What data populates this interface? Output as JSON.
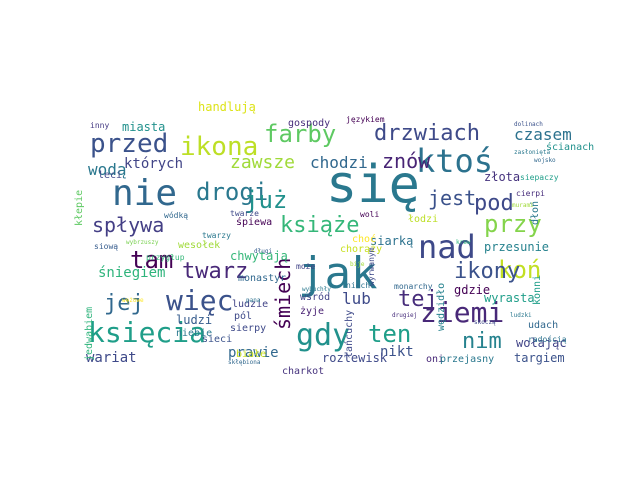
{
  "words": [
    {
      "text": "się",
      "color": "#2a788e"
    },
    {
      "text": "jak",
      "color": "#2a788e"
    },
    {
      "text": "nie",
      "color": "#31688e"
    },
    {
      "text": "ktoś",
      "color": "#2c728e"
    },
    {
      "text": "nad",
      "color": "#3e4989"
    },
    {
      "text": "więc",
      "color": "#3b528b"
    },
    {
      "text": "ziemi",
      "color": "#482878"
    },
    {
      "text": "gdy",
      "color": "#21918c"
    },
    {
      "text": "księcia",
      "color": "#1f9e89"
    },
    {
      "text": "ikona",
      "color": "#bddf26"
    },
    {
      "text": "drzwiach",
      "color": "#3e4a89"
    },
    {
      "text": "przed",
      "color": "#3b528b"
    },
    {
      "text": "farby",
      "color": "#5ec962"
    },
    {
      "text": "drogi",
      "color": "#2a788e"
    },
    {
      "text": "już",
      "color": "#21918c"
    },
    {
      "text": "książe",
      "color": "#35b779"
    },
    {
      "text": "koń",
      "color": "#c2df23"
    },
    {
      "text": "tam",
      "color": "#440154"
    },
    {
      "text": "twarz",
      "color": "#482878"
    },
    {
      "text": "ikony",
      "color": "#3b528b"
    },
    {
      "text": "jej",
      "color": "#31688e"
    },
    {
      "text": "ten",
      "color": "#1f9e89"
    },
    {
      "text": "nim",
      "color": "#26828e"
    },
    {
      "text": "pod",
      "color": "#3e4989"
    },
    {
      "text": "przy",
      "color": "#84d44b"
    },
    {
      "text": "znów",
      "color": "#482475"
    },
    {
      "text": "jest",
      "color": "#3b528b"
    },
    {
      "text": "spływa",
      "color": "#433e85"
    },
    {
      "text": "śmiech",
      "color": "#440154"
    },
    {
      "text": "tej",
      "color": "#472d7b"
    },
    {
      "text": "lub",
      "color": "#3e4a89"
    },
    {
      "text": "zawsze",
      "color": "#a0da39"
    },
    {
      "text": "chodzi",
      "color": "#31688e"
    },
    {
      "text": "czasem",
      "color": "#2c728e"
    },
    {
      "text": "wodą",
      "color": "#2a788e"
    },
    {
      "text": "których",
      "color": "#414487"
    },
    {
      "text": "śniegiem",
      "color": "#2fb47c"
    },
    {
      "text": "wariat",
      "color": "#3e4989"
    },
    {
      "text": "prawie",
      "color": "#31688e"
    },
    {
      "text": "nikt",
      "color": "#3b528b"
    },
    {
      "text": "przesunie",
      "color": "#26828e"
    },
    {
      "text": "wyrasta",
      "color": "#1f9e89"
    },
    {
      "text": "gdzie",
      "color": "#440154"
    },
    {
      "text": "siarką",
      "color": "#2c728e"
    },
    {
      "text": "rozlewisk",
      "color": "#3e4989"
    },
    {
      "text": "targiem",
      "color": "#3b528b"
    },
    {
      "text": "wołając",
      "color": "#414487"
    },
    {
      "text": "miasta",
      "color": "#21918c"
    },
    {
      "text": "handlują",
      "color": "#dde318"
    },
    {
      "text": "inny",
      "color": "#443a83"
    },
    {
      "text": "gospody",
      "color": "#472d7b"
    },
    {
      "text": "językiem",
      "color": "#440154"
    },
    {
      "text": "złota",
      "color": "#46337e"
    },
    {
      "text": "śpiewa",
      "color": "#440154"
    },
    {
      "text": "chwytają",
      "color": "#35b779"
    },
    {
      "text": "monastyr",
      "color": "#31688e"
    },
    {
      "text": "leci",
      "color": "#3e4989"
    },
    {
      "text": "ludzi",
      "color": "#365c8d"
    },
    {
      "text": "niebie",
      "color": "#2a788e"
    },
    {
      "text": "pól",
      "color": "#3e4989"
    },
    {
      "text": "żyje",
      "color": "#482173"
    },
    {
      "text": "wśród",
      "color": "#414487"
    },
    {
      "text": "sieci",
      "color": "#3b528b"
    },
    {
      "text": "białe",
      "color": "#c8e020"
    },
    {
      "text": "charkot",
      "color": "#46337e"
    },
    {
      "text": "łańcuchy",
      "color": "#3e4989"
    },
    {
      "text": "oni",
      "color": "#482878"
    },
    {
      "text": "przejasny",
      "color": "#2a788e"
    },
    {
      "text": "konni",
      "color": "#1f9e89"
    },
    {
      "text": "udach",
      "color": "#31688e"
    },
    {
      "text": "jedwabiem",
      "color": "#2fb47c"
    },
    {
      "text": "ścianach",
      "color": "#21918c"
    },
    {
      "text": "siepaczy",
      "color": "#1f9e89"
    },
    {
      "text": "radością",
      "color": "#2c728e"
    },
    {
      "text": "dłoń",
      "color": "#2a788e"
    },
    {
      "text": "cierpi",
      "color": "#472d7b"
    },
    {
      "text": "wędzidło",
      "color": "#26828e"
    },
    {
      "text": "woli",
      "color": "#440154"
    },
    {
      "text": "choć",
      "color": "#fde725"
    },
    {
      "text": "łodzi",
      "color": "#bddf26"
    },
    {
      "text": "ludzie",
      "color": "#414487"
    },
    {
      "text": "wesołek",
      "color": "#a0da39"
    },
    {
      "text": "twarzy",
      "color": "#2a788e"
    },
    {
      "text": "sierpy",
      "color": "#3e4989"
    },
    {
      "text": "przygłup",
      "color": "#35b779"
    },
    {
      "text": "wódką",
      "color": "#31688e"
    },
    {
      "text": "twarze",
      "color": "#3e4989"
    },
    {
      "text": "kłepie",
      "color": "#5ec962"
    },
    {
      "text": "wybrzuszy",
      "color": "#7ad151"
    },
    {
      "text": "siową",
      "color": "#365c8d"
    },
    {
      "text": "chorąży",
      "color": "#c8e020"
    },
    {
      "text": "może",
      "color": "#414487"
    },
    {
      "text": "niech",
      "color": "#2c728e"
    },
    {
      "text": "wyrwanym",
      "color": "#3e4989"
    },
    {
      "text": "monarchy",
      "color": "#31688e"
    },
    {
      "text": "dolinach",
      "color": "#3b528b"
    },
    {
      "text": "zasłonięta",
      "color": "#2a788e"
    },
    {
      "text": "skłębiona",
      "color": "#31688e"
    },
    {
      "text": "wężowe",
      "color": "#fde725"
    },
    {
      "text": "wybuchły",
      "color": "#2a788e"
    },
    {
      "text": "drugiej",
      "color": "#472d7b"
    },
    {
      "text": "murami",
      "color": "#a0da39"
    },
    {
      "text": "ludzki",
      "color": "#2a788e"
    },
    {
      "text": "skoczą",
      "color": "#3e4989"
    },
    {
      "text": "długi",
      "color": "#365c8d"
    },
    {
      "text": "wojsko",
      "color": "#31688e"
    },
    {
      "text": "pana",
      "color": "#2c728e"
    },
    {
      "text": "bije",
      "color": "#a0da39"
    },
    {
      "text": "krew",
      "color": "#2fb47c"
    }
  ]
}
